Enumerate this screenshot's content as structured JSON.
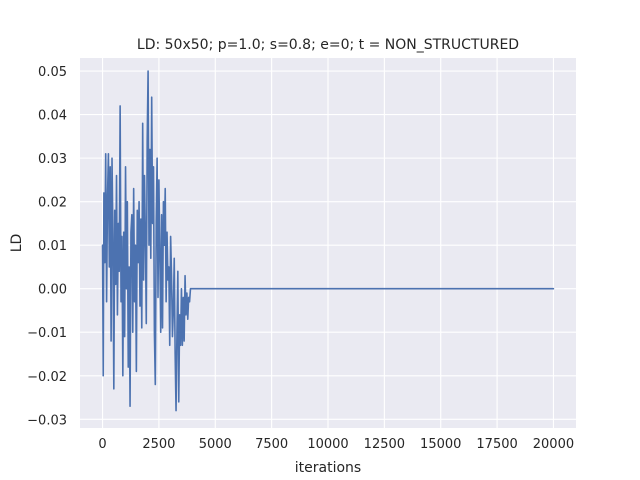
{
  "chart_data": {
    "type": "line",
    "title": "LD: 50x50; p=1.0; s=0.8; e=0; t = NON_STRUCTURED",
    "xlabel": "iterations",
    "ylabel": "LD",
    "xlim": [
      -1000,
      21000
    ],
    "ylim": [
      -0.032,
      0.053
    ],
    "xticks": [
      0,
      2500,
      5000,
      7500,
      10000,
      12500,
      15000,
      17500,
      20000
    ],
    "yticks": [
      -0.03,
      -0.02,
      -0.01,
      0.0,
      0.01,
      0.02,
      0.03,
      0.04,
      0.05
    ],
    "ytick_labels": [
      "−0.03",
      "−0.02",
      "−0.01",
      "0.00",
      "0.01",
      "0.02",
      "0.03",
      "0.04",
      "0.05"
    ],
    "grid": true,
    "background_color": "#eaeaf2",
    "series": [
      {
        "color": "#4c72b0",
        "points": [
          [
            0,
            0.01
          ],
          [
            30,
            -0.02
          ],
          [
            60,
            0.022
          ],
          [
            100,
            0.006
          ],
          [
            140,
            0.031
          ],
          [
            180,
            -0.003
          ],
          [
            220,
            0.021
          ],
          [
            260,
            0.031
          ],
          [
            300,
            0.005
          ],
          [
            340,
            0.028
          ],
          [
            380,
            -0.012
          ],
          [
            420,
            0.03
          ],
          [
            460,
            0.012
          ],
          [
            500,
            -0.023
          ],
          [
            540,
            0.018
          ],
          [
            580,
            0.001
          ],
          [
            620,
            0.026
          ],
          [
            660,
            -0.006
          ],
          [
            700,
            0.015
          ],
          [
            740,
            0.004
          ],
          [
            780,
            0.042
          ],
          [
            820,
            -0.003
          ],
          [
            860,
            0.012
          ],
          [
            900,
            -0.02
          ],
          [
            940,
            0.013
          ],
          [
            980,
            -0.011
          ],
          [
            1020,
            0.028
          ],
          [
            1060,
            0.0
          ],
          [
            1100,
            0.02
          ],
          [
            1140,
            -0.018
          ],
          [
            1180,
            0.005
          ],
          [
            1220,
            -0.027
          ],
          [
            1260,
            0.013
          ],
          [
            1300,
            0.017
          ],
          [
            1340,
            -0.01
          ],
          [
            1380,
            0.023
          ],
          [
            1420,
            -0.003
          ],
          [
            1460,
            0.01
          ],
          [
            1500,
            -0.019
          ],
          [
            1540,
            0.018
          ],
          [
            1580,
            0.006
          ],
          [
            1620,
            0.02
          ],
          [
            1660,
            -0.004
          ],
          [
            1700,
            0.016
          ],
          [
            1740,
            -0.009
          ],
          [
            1780,
            0.038
          ],
          [
            1820,
            0.002
          ],
          [
            1860,
            0.026
          ],
          [
            1900,
            0.012
          ],
          [
            1940,
            -0.008
          ],
          [
            1980,
            0.034
          ],
          [
            2020,
            0.05
          ],
          [
            2060,
            0.01
          ],
          [
            2100,
            0.032
          ],
          [
            2140,
            0.007
          ],
          [
            2180,
            0.044
          ],
          [
            2220,
            0.015
          ],
          [
            2260,
            0.028
          ],
          [
            2300,
            -0.01
          ],
          [
            2340,
            -0.022
          ],
          [
            2380,
            0.015
          ],
          [
            2420,
            0.03
          ],
          [
            2460,
            -0.002
          ],
          [
            2500,
            0.025
          ],
          [
            2540,
            0.008
          ],
          [
            2580,
            -0.01
          ],
          [
            2620,
            0.017
          ],
          [
            2660,
            -0.009
          ],
          [
            2700,
            0.02
          ],
          [
            2740,
            0.01
          ],
          [
            2780,
            0.023
          ],
          [
            2820,
            -0.003
          ],
          [
            2860,
            0.013
          ],
          [
            2900,
            0.002
          ],
          [
            2940,
            0.005
          ],
          [
            2980,
            -0.013
          ],
          [
            3020,
            0.012
          ],
          [
            3060,
            0.003
          ],
          [
            3100,
            -0.011
          ],
          [
            3140,
            -0.005
          ],
          [
            3180,
            0.007
          ],
          [
            3220,
            -0.015
          ],
          [
            3260,
            -0.028
          ],
          [
            3300,
            -0.01
          ],
          [
            3340,
            0.004
          ],
          [
            3380,
            -0.026
          ],
          [
            3420,
            -0.006
          ],
          [
            3460,
            -0.013
          ],
          [
            3500,
            0.0
          ],
          [
            3540,
            -0.013
          ],
          [
            3580,
            -0.002
          ],
          [
            3620,
            -0.012
          ],
          [
            3660,
            0.003
          ],
          [
            3700,
            -0.006
          ],
          [
            3740,
            -0.001
          ],
          [
            3780,
            -0.007
          ],
          [
            3820,
            -0.002
          ],
          [
            3860,
            -0.003
          ],
          [
            3900,
            0.0
          ],
          [
            4000,
            0.0
          ],
          [
            20000,
            0.0
          ]
        ]
      }
    ]
  }
}
